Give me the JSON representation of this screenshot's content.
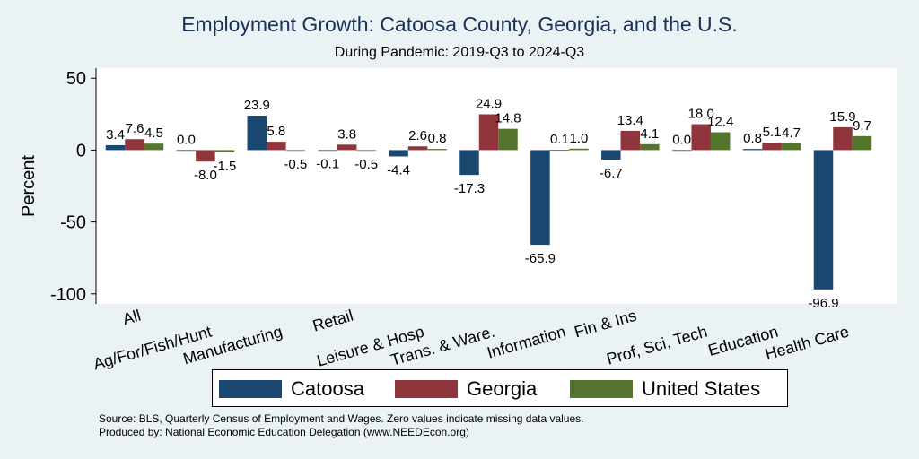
{
  "chart_data": {
    "type": "bar",
    "title": "Employment Growth: Catoosa County, Georgia, and the U.S.",
    "subtitle": "During Pandemic: 2019-Q3 to 2024-Q3",
    "ylabel": "Percent",
    "xlabel": "",
    "ylim": [
      -107,
      57
    ],
    "yticks": [
      50,
      0,
      -50,
      -100
    ],
    "grid": false,
    "legend_position": "bottom",
    "categories": [
      [
        "All"
      ],
      [
        "Ag/For/Fish/Hunt"
      ],
      [
        "Manufacturing"
      ],
      [
        "Retail"
      ],
      [
        "Leisure & Hosp"
      ],
      [
        "Trans. & Ware."
      ],
      [
        "Information"
      ],
      [
        "Fin & Ins"
      ],
      [
        "Prof, Sci, Tech"
      ],
      [
        "Education"
      ],
      [
        "Health Care"
      ]
    ],
    "series": [
      {
        "name": "Catoosa",
        "color": "#1a476f",
        "values": [
          3.4,
          0.0,
          23.9,
          -0.1,
          -4.4,
          -17.3,
          -65.9,
          -6.7,
          0.0,
          0.8,
          -96.9
        ]
      },
      {
        "name": "Georgia",
        "color": "#90353b",
        "values": [
          7.6,
          -8.0,
          5.8,
          3.8,
          2.6,
          24.9,
          0.1,
          13.4,
          18.0,
          5.1,
          15.9
        ]
      },
      {
        "name": "United States",
        "color": "#55752f",
        "values": [
          4.5,
          -1.5,
          -0.5,
          -0.5,
          0.8,
          14.8,
          1.0,
          4.1,
          12.4,
          4.7,
          9.7
        ]
      }
    ]
  },
  "notes": {
    "source": "Source: BLS, Quarterly Census of Employment and Wages. Zero values indicate missing data values.",
    "produced_by": "Produced by: National Economic Education Delegation (www.NEEDEcon.org)"
  }
}
